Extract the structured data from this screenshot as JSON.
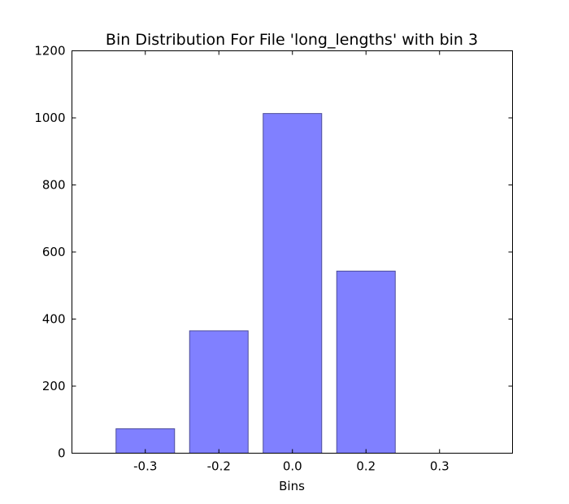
{
  "chart_data": {
    "type": "bar",
    "title": "Bin Distribution For File 'long_lengths' with bin 3",
    "xlabel": "Bins",
    "ylabel": "",
    "ylim": [
      0,
      1200
    ],
    "yticks": [
      "0",
      "200",
      "400",
      "600",
      "800",
      "1000",
      "1200"
    ],
    "categories": [
      "-0.3",
      "-0.2",
      "0.0",
      "0.2",
      "0.3"
    ],
    "values": [
      73,
      365,
      1013,
      543,
      0
    ],
    "grid": false,
    "legend": "none",
    "bar_color": "#8080ff",
    "bar_edge_color": "#4d4d99"
  }
}
